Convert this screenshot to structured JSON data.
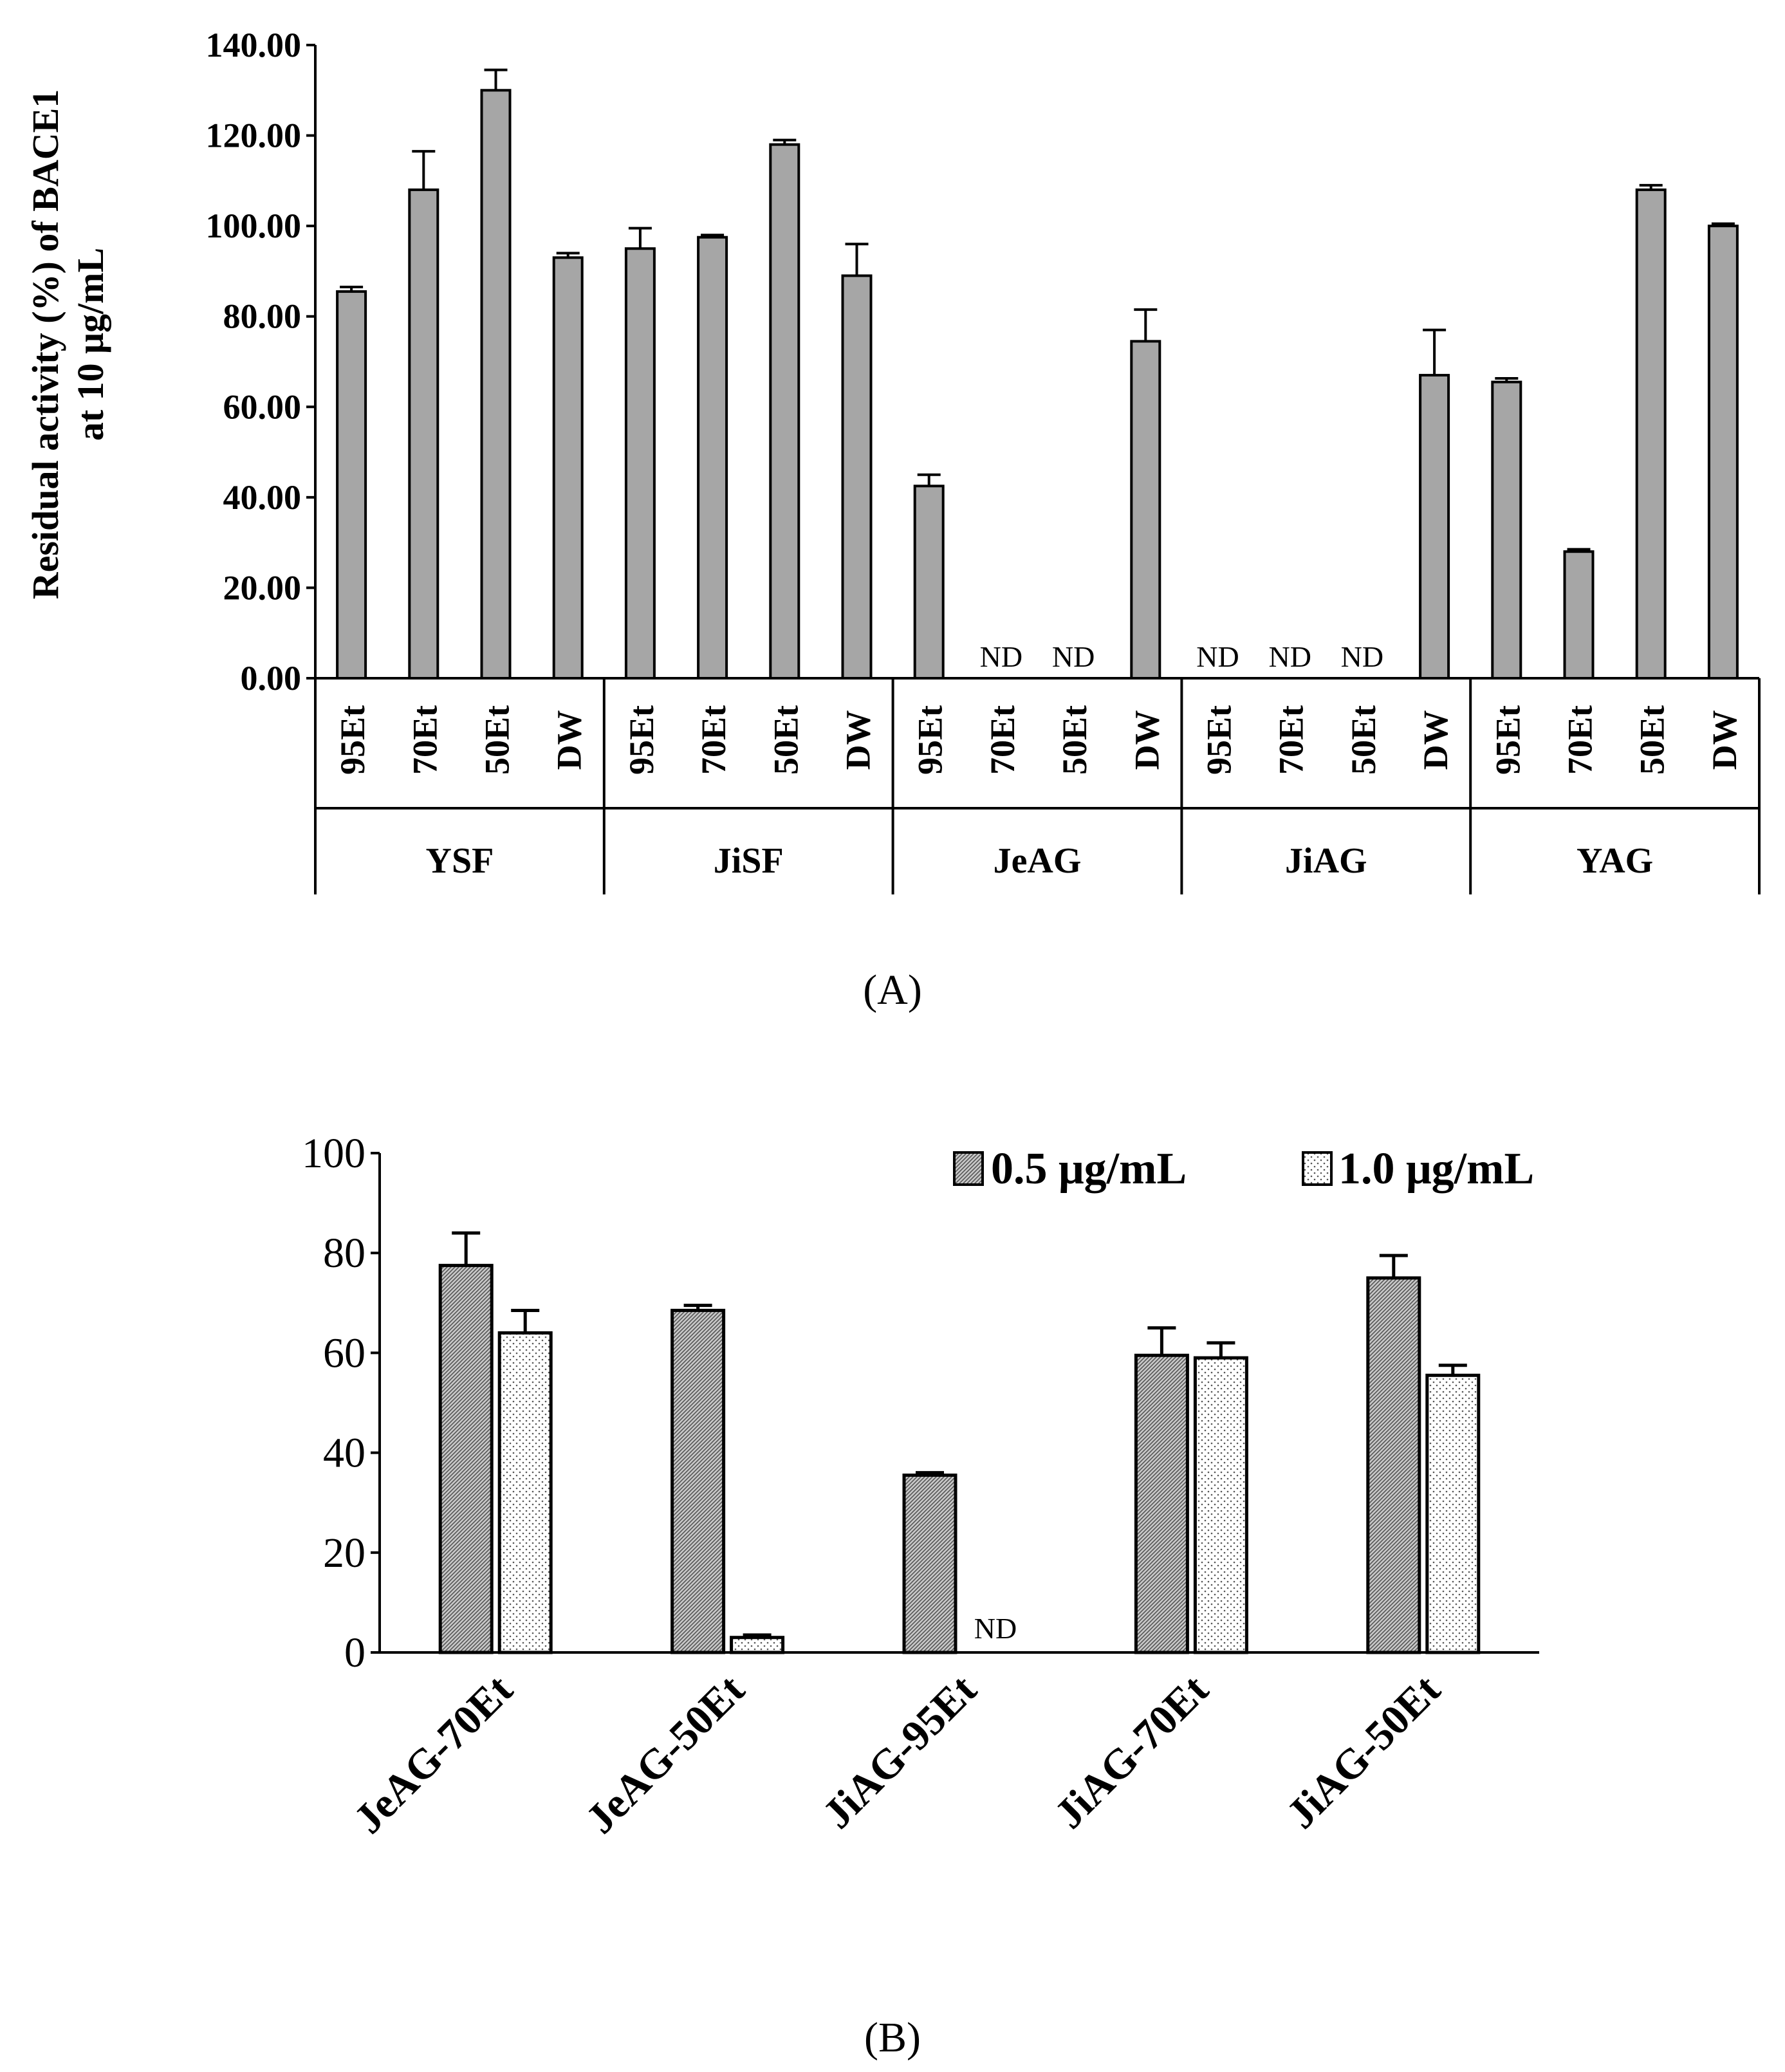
{
  "chart_data": [
    {
      "type": "bar",
      "panel": "A",
      "caption": "(A)",
      "ylabel_line1": "Residual activity (%) of BACE1",
      "ylabel_line2": "at 10 μg/mL",
      "ylim": [
        0,
        140
      ],
      "yticks": [
        "0.00",
        "20.00",
        "40.00",
        "60.00",
        "80.00",
        "100.00",
        "120.00",
        "140.00"
      ],
      "bar_color": "#a6a6a6",
      "nd_label": "ND",
      "groups": [
        {
          "name": "YSF",
          "bars": [
            {
              "label": "95Et",
              "value": 85.5,
              "error": 1.0
            },
            {
              "label": "70Et",
              "value": 108,
              "error": 8.5
            },
            {
              "label": "50Et",
              "value": 130,
              "error": 4.5
            },
            {
              "label": "DW",
              "value": 93,
              "error": 1.0
            }
          ]
        },
        {
          "name": "JiSF",
          "bars": [
            {
              "label": "95Et",
              "value": 95,
              "error": 4.5
            },
            {
              "label": "70Et",
              "value": 97.5,
              "error": 0.5
            },
            {
              "label": "50Et",
              "value": 118,
              "error": 1.0
            },
            {
              "label": "DW",
              "value": 89,
              "error": 7.0
            }
          ]
        },
        {
          "name": "JeAG",
          "bars": [
            {
              "label": "95Et",
              "value": 42.5,
              "error": 2.5
            },
            {
              "label": "70Et",
              "value": null,
              "error": 0
            },
            {
              "label": "50Et",
              "value": null,
              "error": 0
            },
            {
              "label": "DW",
              "value": 74.5,
              "error": 7.0
            }
          ]
        },
        {
          "name": "JiAG",
          "bars": [
            {
              "label": "95Et",
              "value": null,
              "error": 0
            },
            {
              "label": "70Et",
              "value": null,
              "error": 0
            },
            {
              "label": "50Et",
              "value": null,
              "error": 0
            },
            {
              "label": "DW",
              "value": 67,
              "error": 10.0
            }
          ]
        },
        {
          "name": "YAG",
          "bars": [
            {
              "label": "95Et",
              "value": 65.5,
              "error": 0.8
            },
            {
              "label": "70Et",
              "value": 28,
              "error": 0.5
            },
            {
              "label": "50Et",
              "value": 108,
              "error": 1.0
            },
            {
              "label": "DW",
              "value": 100,
              "error": 0.5
            }
          ]
        }
      ]
    },
    {
      "type": "bar",
      "panel": "B",
      "caption": "(B)",
      "ylim": [
        0,
        100
      ],
      "yticks": [
        "0",
        "20",
        "40",
        "60",
        "80",
        "100"
      ],
      "nd_label": "ND",
      "categories": [
        "JeAG-70Et",
        "JeAG-50Et",
        "JiAG-95Et",
        "JiAG-70Et",
        "JiAG-50Et"
      ],
      "series": [
        {
          "name": "0.5 μg/mL",
          "pattern": "crosshatch",
          "values": [
            77.5,
            68.5,
            35.5,
            59.5,
            75
          ],
          "errors": [
            6.5,
            1.0,
            0.5,
            5.5,
            4.5
          ]
        },
        {
          "name": "1.0 μg/mL",
          "pattern": "dots",
          "values": [
            64,
            3,
            null,
            59,
            55.5
          ],
          "errors": [
            4.5,
            0.5,
            0,
            3.0,
            2.0
          ]
        }
      ]
    }
  ]
}
